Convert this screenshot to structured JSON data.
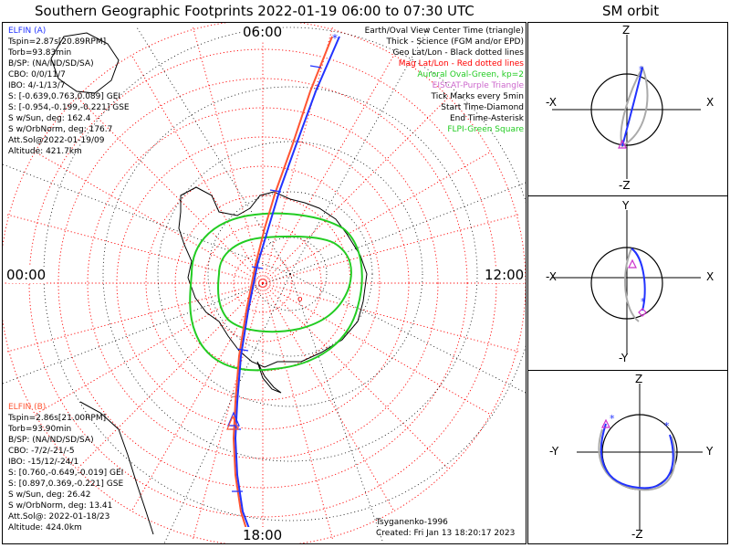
{
  "header": {
    "title": "Southern Geographic Footprints 2022-01-19 06:00 to 07:30 UTC",
    "orbit_title": "SM orbit"
  },
  "map": {
    "mlt_top": "06:00",
    "mlt_left": "00:00",
    "mlt_right": "12:00",
    "mlt_bottom": "18:00"
  },
  "elfin_a": {
    "name": "ELFIN (A)",
    "color": "#2233ff",
    "lines": [
      "Tspin=2.87s[20.89RPM]",
      "Torb=93.83min",
      "B/SP: (NA/ND/SD/SA)",
      "CBO: 0/0/11/7",
      "IBO: 4/-1/13/7",
      "S: [-0.639,0.763,0.089] GEI",
      "S: [-0.954,-0.199,-0.221] GSE",
      "S w/Sun, deg: 162.4",
      "S w/OrbNorm, deg: 176.7",
      "Att.Sol@2022-01-19/09",
      "Altitude: 421.7km"
    ]
  },
  "elfin_b": {
    "name": "ELFIN (B)",
    "color": "#ff5533",
    "lines": [
      "Tspin=2.86s[21.00RPM]",
      "Torb=93.90min",
      "B/SP: (NA/ND/SD/SA)",
      "CBO: -7/2/-21/-5",
      "IBO: -15/12/-24/1",
      "S: [0.760,-0.649,-0.019] GEI",
      "S: [0.897,0.369,-0.221] GSE",
      "S w/Sun, deg: 26.42",
      "S w/OrbNorm, deg: 13.41",
      "Att.Sol@: 2022-01-18/23",
      "Altitude: 424.0km"
    ]
  },
  "legend": [
    {
      "text": "Earth/Oval View Center Time (triangle)",
      "color": "#000000"
    },
    {
      "text": "Thick - Science (FGM and/or EPD)",
      "color": "#000000"
    },
    {
      "text": "Geo Lat/Lon - Black dotted lines",
      "color": "#000000"
    },
    {
      "text": "Mag Lat/Lon - Red dotted lines",
      "color": "#ff0000"
    },
    {
      "text": "Auroral Oval-Green, kp=2",
      "color": "#22cc22"
    },
    {
      "text": "EISCAT-Purple Triangle",
      "color": "#cc66cc"
    },
    {
      "text": "Tick Marks every 5min",
      "color": "#000000"
    },
    {
      "text": "Start Time-Diamond",
      "color": "#000000"
    },
    {
      "text": "End Time-Asterisk",
      "color": "#000000"
    },
    {
      "text": "FLPI-Green Square",
      "color": "#22cc22"
    }
  ],
  "footer": {
    "model": "Tsyganenko-1996",
    "created": "Created: Fri Jan 13 18:20:17 2023"
  },
  "orbit_panels": [
    {
      "top": "Z",
      "bottom": "-Z",
      "left": "-X",
      "right": "X"
    },
    {
      "top": "Y",
      "bottom": "-Y",
      "left": "-X",
      "right": "X"
    },
    {
      "top": "Z",
      "bottom": "-Z",
      "left": "-Y",
      "right": "Y"
    }
  ],
  "colors": {
    "elfin_a": "#2233ff",
    "elfin_b": "#ff5533",
    "mag_grid": "#ff0000",
    "geo_grid": "#000000",
    "oval": "#22cc22",
    "marker": "#cc33cc"
  }
}
